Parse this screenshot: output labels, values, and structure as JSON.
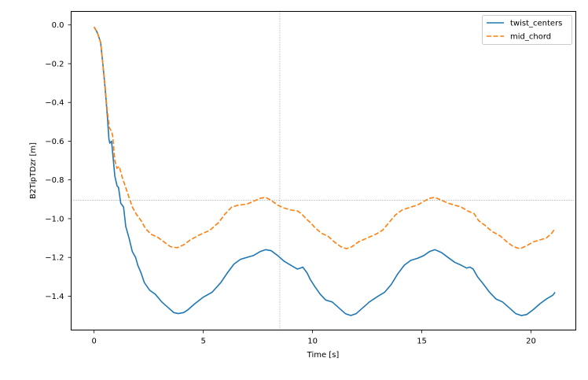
{
  "chart_data": {
    "type": "line",
    "title": "",
    "xlabel": "Time [s]",
    "ylabel": "B2TipTDzr [m]",
    "xlim": [
      -1.05,
      22.05
    ],
    "ylim": [
      -1.575,
      0.07
    ],
    "xticks": [
      0,
      5,
      10,
      15,
      20
    ],
    "xtick_labels": [
      "0",
      "5",
      "10",
      "15",
      "20"
    ],
    "yticks": [
      0.0,
      -0.2,
      -0.4,
      -0.6,
      -0.8,
      -1.0,
      -1.2,
      -1.4
    ],
    "ytick_labels": [
      "0.0",
      "−0.2",
      "−0.4",
      "−0.6",
      "−0.8",
      "−1.0",
      "−1.2",
      "−1.4"
    ],
    "grid": false,
    "reference_lines": {
      "vertical_x": 8.5,
      "horizontal_y": -0.905
    },
    "legend_position": "top-right",
    "series": [
      {
        "name": "twist_centers",
        "color": "#1f77b4",
        "style": "solid",
        "points": [
          [
            0.0,
            -0.01
          ],
          [
            0.15,
            -0.04
          ],
          [
            0.3,
            -0.09
          ],
          [
            0.4,
            -0.2
          ],
          [
            0.5,
            -0.32
          ],
          [
            0.6,
            -0.46
          ],
          [
            0.68,
            -0.59
          ],
          [
            0.72,
            -0.61
          ],
          [
            0.8,
            -0.6
          ],
          [
            0.85,
            -0.66
          ],
          [
            0.95,
            -0.78
          ],
          [
            1.05,
            -0.83
          ],
          [
            1.12,
            -0.84
          ],
          [
            1.22,
            -0.92
          ],
          [
            1.35,
            -0.94
          ],
          [
            1.45,
            -1.04
          ],
          [
            1.6,
            -1.1
          ],
          [
            1.75,
            -1.17
          ],
          [
            1.9,
            -1.2
          ],
          [
            2.0,
            -1.24
          ],
          [
            2.15,
            -1.28
          ],
          [
            2.3,
            -1.33
          ],
          [
            2.55,
            -1.37
          ],
          [
            2.8,
            -1.39
          ],
          [
            3.1,
            -1.43
          ],
          [
            3.4,
            -1.46
          ],
          [
            3.65,
            -1.485
          ],
          [
            3.85,
            -1.49
          ],
          [
            4.1,
            -1.485
          ],
          [
            4.3,
            -1.47
          ],
          [
            4.6,
            -1.44
          ],
          [
            5.0,
            -1.405
          ],
          [
            5.4,
            -1.38
          ],
          [
            5.8,
            -1.33
          ],
          [
            6.1,
            -1.28
          ],
          [
            6.4,
            -1.235
          ],
          [
            6.7,
            -1.21
          ],
          [
            7.0,
            -1.2
          ],
          [
            7.3,
            -1.19
          ],
          [
            7.6,
            -1.17
          ],
          [
            7.85,
            -1.16
          ],
          [
            8.1,
            -1.165
          ],
          [
            8.4,
            -1.19
          ],
          [
            8.7,
            -1.22
          ],
          [
            9.0,
            -1.24
          ],
          [
            9.3,
            -1.26
          ],
          [
            9.45,
            -1.255
          ],
          [
            9.55,
            -1.25
          ],
          [
            9.75,
            -1.28
          ],
          [
            9.9,
            -1.315
          ],
          [
            10.1,
            -1.35
          ],
          [
            10.35,
            -1.39
          ],
          [
            10.6,
            -1.42
          ],
          [
            10.9,
            -1.43
          ],
          [
            11.2,
            -1.46
          ],
          [
            11.5,
            -1.49
          ],
          [
            11.75,
            -1.5
          ],
          [
            12.0,
            -1.49
          ],
          [
            12.3,
            -1.46
          ],
          [
            12.6,
            -1.43
          ],
          [
            13.0,
            -1.4
          ],
          [
            13.3,
            -1.38
          ],
          [
            13.6,
            -1.34
          ],
          [
            13.9,
            -1.285
          ],
          [
            14.2,
            -1.24
          ],
          [
            14.5,
            -1.215
          ],
          [
            14.8,
            -1.205
          ],
          [
            15.1,
            -1.19
          ],
          [
            15.35,
            -1.17
          ],
          [
            15.6,
            -1.16
          ],
          [
            15.9,
            -1.175
          ],
          [
            16.2,
            -1.2
          ],
          [
            16.5,
            -1.225
          ],
          [
            16.8,
            -1.24
          ],
          [
            17.05,
            -1.255
          ],
          [
            17.2,
            -1.25
          ],
          [
            17.35,
            -1.26
          ],
          [
            17.55,
            -1.3
          ],
          [
            17.8,
            -1.335
          ],
          [
            18.1,
            -1.38
          ],
          [
            18.4,
            -1.415
          ],
          [
            18.7,
            -1.43
          ],
          [
            19.0,
            -1.46
          ],
          [
            19.3,
            -1.49
          ],
          [
            19.55,
            -1.5
          ],
          [
            19.8,
            -1.495
          ],
          [
            20.1,
            -1.47
          ],
          [
            20.4,
            -1.44
          ],
          [
            20.7,
            -1.415
          ],
          [
            21.0,
            -1.395
          ],
          [
            21.1,
            -1.38
          ]
        ]
      },
      {
        "name": "mid_chord",
        "color": "#ff7f0e",
        "style": "dashed",
        "points": [
          [
            0.0,
            -0.01
          ],
          [
            0.15,
            -0.04
          ],
          [
            0.3,
            -0.09
          ],
          [
            0.4,
            -0.2
          ],
          [
            0.5,
            -0.31
          ],
          [
            0.6,
            -0.44
          ],
          [
            0.7,
            -0.53
          ],
          [
            0.8,
            -0.55
          ],
          [
            0.85,
            -0.57
          ],
          [
            0.95,
            -0.7
          ],
          [
            1.05,
            -0.74
          ],
          [
            1.15,
            -0.73
          ],
          [
            1.3,
            -0.79
          ],
          [
            1.45,
            -0.84
          ],
          [
            1.6,
            -0.89
          ],
          [
            1.75,
            -0.94
          ],
          [
            1.95,
            -0.98
          ],
          [
            2.15,
            -1.01
          ],
          [
            2.35,
            -1.05
          ],
          [
            2.6,
            -1.08
          ],
          [
            2.9,
            -1.095
          ],
          [
            3.2,
            -1.12
          ],
          [
            3.5,
            -1.145
          ],
          [
            3.8,
            -1.15
          ],
          [
            4.1,
            -1.135
          ],
          [
            4.4,
            -1.11
          ],
          [
            4.8,
            -1.085
          ],
          [
            5.3,
            -1.06
          ],
          [
            5.7,
            -1.02
          ],
          [
            6.0,
            -0.975
          ],
          [
            6.3,
            -0.94
          ],
          [
            6.6,
            -0.93
          ],
          [
            7.0,
            -0.925
          ],
          [
            7.3,
            -0.91
          ],
          [
            7.6,
            -0.895
          ],
          [
            7.85,
            -0.89
          ],
          [
            8.1,
            -0.905
          ],
          [
            8.4,
            -0.93
          ],
          [
            8.7,
            -0.945
          ],
          [
            9.0,
            -0.955
          ],
          [
            9.3,
            -0.96
          ],
          [
            9.5,
            -0.975
          ],
          [
            9.7,
            -1.0
          ],
          [
            9.9,
            -1.02
          ],
          [
            10.1,
            -1.045
          ],
          [
            10.4,
            -1.075
          ],
          [
            10.7,
            -1.09
          ],
          [
            11.0,
            -1.12
          ],
          [
            11.3,
            -1.145
          ],
          [
            11.55,
            -1.155
          ],
          [
            11.8,
            -1.145
          ],
          [
            12.1,
            -1.12
          ],
          [
            12.5,
            -1.1
          ],
          [
            12.9,
            -1.08
          ],
          [
            13.2,
            -1.06
          ],
          [
            13.5,
            -1.02
          ],
          [
            13.8,
            -0.98
          ],
          [
            14.1,
            -0.955
          ],
          [
            14.5,
            -0.94
          ],
          [
            14.8,
            -0.93
          ],
          [
            15.1,
            -0.91
          ],
          [
            15.35,
            -0.895
          ],
          [
            15.6,
            -0.89
          ],
          [
            15.9,
            -0.905
          ],
          [
            16.2,
            -0.92
          ],
          [
            16.5,
            -0.93
          ],
          [
            16.8,
            -0.94
          ],
          [
            17.1,
            -0.96
          ],
          [
            17.4,
            -0.975
          ],
          [
            17.6,
            -1.01
          ],
          [
            17.9,
            -1.035
          ],
          [
            18.2,
            -1.065
          ],
          [
            18.6,
            -1.09
          ],
          [
            18.9,
            -1.12
          ],
          [
            19.2,
            -1.145
          ],
          [
            19.5,
            -1.155
          ],
          [
            19.8,
            -1.14
          ],
          [
            20.1,
            -1.12
          ],
          [
            20.4,
            -1.11
          ],
          [
            20.7,
            -1.1
          ],
          [
            20.95,
            -1.075
          ],
          [
            21.1,
            -1.05
          ]
        ]
      }
    ]
  }
}
